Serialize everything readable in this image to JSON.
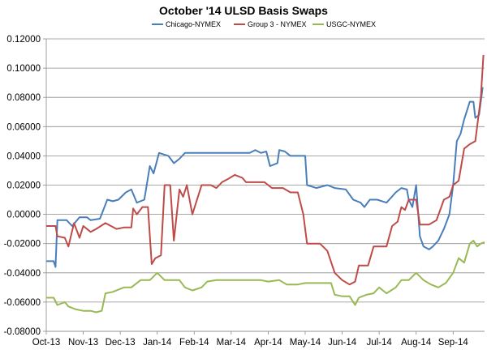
{
  "chart_data": {
    "type": "line",
    "title": "October '14 ULSD Basis Swaps",
    "xlabel": "",
    "ylabel": "",
    "ylim": [
      -0.08,
      0.12
    ],
    "yticks": [
      "0.12000",
      "0.10000",
      "0.08000",
      "0.06000",
      "0.04000",
      "0.02000",
      "0.00000",
      "-0.02000",
      "-0.04000",
      "-0.06000",
      "-0.08000"
    ],
    "ytick_values": [
      0.12,
      0.1,
      0.08,
      0.06,
      0.04,
      0.02,
      0.0,
      -0.02,
      -0.04,
      -0.06,
      -0.08
    ],
    "xticks": [
      "Oct-13",
      "Nov-13",
      "Dec-13",
      "Jan-14",
      "Feb-14",
      "Mar-14",
      "Apr-14",
      "May-14",
      "Jun-14",
      "Jul-14",
      "Aug-14",
      "Sep-14"
    ],
    "xlim": [
      0,
      11.85
    ],
    "grid": true,
    "legend_position": "top",
    "series": [
      {
        "name": "Chicago-NYMEX",
        "color": "#4A7EBB",
        "points": [
          [
            0.0,
            -0.032
          ],
          [
            0.2,
            -0.032
          ],
          [
            0.25,
            -0.036
          ],
          [
            0.3,
            -0.004
          ],
          [
            0.55,
            -0.004
          ],
          [
            0.7,
            -0.008
          ],
          [
            0.9,
            -0.002
          ],
          [
            1.1,
            -0.002
          ],
          [
            1.2,
            -0.004
          ],
          [
            1.45,
            -0.003
          ],
          [
            1.65,
            0.01
          ],
          [
            1.8,
            0.009
          ],
          [
            1.95,
            0.01
          ],
          [
            2.15,
            0.015
          ],
          [
            2.3,
            0.017
          ],
          [
            2.45,
            0.008
          ],
          [
            2.65,
            0.01
          ],
          [
            2.8,
            0.033
          ],
          [
            2.9,
            0.028
          ],
          [
            3.05,
            0.042
          ],
          [
            3.3,
            0.04
          ],
          [
            3.45,
            0.035
          ],
          [
            3.6,
            0.038
          ],
          [
            3.75,
            0.042
          ],
          [
            4.0,
            0.042
          ],
          [
            4.8,
            0.042
          ],
          [
            5.0,
            0.042
          ],
          [
            5.5,
            0.042
          ],
          [
            5.65,
            0.044
          ],
          [
            5.8,
            0.042
          ],
          [
            5.95,
            0.043
          ],
          [
            6.05,
            0.033
          ],
          [
            6.25,
            0.035
          ],
          [
            6.3,
            0.044
          ],
          [
            6.45,
            0.043
          ],
          [
            6.6,
            0.04
          ],
          [
            7.0,
            0.04
          ],
          [
            7.05,
            0.02
          ],
          [
            7.3,
            0.018
          ],
          [
            7.6,
            0.02
          ],
          [
            7.8,
            0.018
          ],
          [
            8.1,
            0.017
          ],
          [
            8.3,
            0.01
          ],
          [
            8.5,
            0.008
          ],
          [
            8.6,
            0.005
          ],
          [
            8.75,
            0.01
          ],
          [
            8.95,
            0.01
          ],
          [
            9.2,
            0.008
          ],
          [
            9.45,
            0.015
          ],
          [
            9.6,
            0.018
          ],
          [
            9.75,
            0.017
          ],
          [
            9.8,
            0.01
          ],
          [
            9.9,
            0.005
          ],
          [
            10.0,
            0.02
          ],
          [
            10.1,
            -0.015
          ],
          [
            10.2,
            -0.022
          ],
          [
            10.35,
            -0.024
          ],
          [
            10.45,
            -0.022
          ],
          [
            10.6,
            -0.018
          ],
          [
            10.75,
            -0.01
          ],
          [
            10.9,
            0.0
          ],
          [
            11.0,
            0.02
          ],
          [
            11.1,
            0.05
          ],
          [
            11.2,
            0.055
          ],
          [
            11.3,
            0.065
          ],
          [
            11.45,
            0.077
          ],
          [
            11.55,
            0.077
          ],
          [
            11.6,
            0.066
          ],
          [
            11.7,
            0.068
          ],
          [
            11.8,
            0.087
          ]
        ]
      },
      {
        "name": "Group 3 - NYMEX",
        "color": "#BE4B48",
        "points": [
          [
            0.0,
            -0.008
          ],
          [
            0.25,
            -0.008
          ],
          [
            0.3,
            -0.015
          ],
          [
            0.5,
            -0.016
          ],
          [
            0.6,
            -0.022
          ],
          [
            0.75,
            -0.006
          ],
          [
            0.9,
            -0.016
          ],
          [
            1.0,
            -0.008
          ],
          [
            1.2,
            -0.012
          ],
          [
            1.35,
            -0.01
          ],
          [
            1.6,
            -0.006
          ],
          [
            1.75,
            -0.008
          ],
          [
            1.9,
            -0.01
          ],
          [
            2.1,
            -0.009
          ],
          [
            2.3,
            -0.009
          ],
          [
            2.35,
            0.004
          ],
          [
            2.45,
            0.0
          ],
          [
            2.6,
            0.005
          ],
          [
            2.75,
            0.005
          ],
          [
            2.85,
            -0.034
          ],
          [
            2.95,
            -0.03
          ],
          [
            3.1,
            -0.028
          ],
          [
            3.2,
            0.02
          ],
          [
            3.35,
            0.02
          ],
          [
            3.45,
            -0.018
          ],
          [
            3.6,
            0.017
          ],
          [
            3.7,
            0.012
          ],
          [
            3.8,
            0.02
          ],
          [
            3.95,
            0.0
          ],
          [
            4.2,
            0.02
          ],
          [
            4.45,
            0.02
          ],
          [
            4.6,
            0.018
          ],
          [
            4.75,
            0.022
          ],
          [
            4.9,
            0.024
          ],
          [
            5.1,
            0.027
          ],
          [
            5.3,
            0.025
          ],
          [
            5.4,
            0.022
          ],
          [
            5.6,
            0.022
          ],
          [
            5.9,
            0.022
          ],
          [
            6.1,
            0.018
          ],
          [
            6.4,
            0.018
          ],
          [
            6.6,
            0.015
          ],
          [
            6.8,
            0.015
          ],
          [
            6.95,
            0.0
          ],
          [
            7.05,
            -0.02
          ],
          [
            7.2,
            -0.02
          ],
          [
            7.4,
            -0.02
          ],
          [
            7.6,
            -0.025
          ],
          [
            7.8,
            -0.04
          ],
          [
            8.0,
            -0.045
          ],
          [
            8.2,
            -0.048
          ],
          [
            8.35,
            -0.046
          ],
          [
            8.45,
            -0.035
          ],
          [
            8.7,
            -0.035
          ],
          [
            8.85,
            -0.022
          ],
          [
            9.2,
            -0.022
          ],
          [
            9.35,
            -0.008
          ],
          [
            9.5,
            -0.005
          ],
          [
            9.6,
            0.005
          ],
          [
            9.7,
            0.003
          ],
          [
            9.8,
            0.01
          ],
          [
            9.9,
            0.01
          ],
          [
            10.0,
            0.01
          ],
          [
            10.1,
            -0.007
          ],
          [
            10.35,
            -0.007
          ],
          [
            10.55,
            -0.004
          ],
          [
            10.75,
            0.01
          ],
          [
            10.9,
            0.012
          ],
          [
            11.0,
            0.02
          ],
          [
            11.15,
            0.023
          ],
          [
            11.3,
            0.045
          ],
          [
            11.45,
            0.048
          ],
          [
            11.6,
            0.05
          ],
          [
            11.75,
            0.08
          ],
          [
            11.82,
            0.109
          ]
        ]
      },
      {
        "name": "USGC-NYMEX",
        "color": "#98B954",
        "points": [
          [
            0.0,
            -0.057
          ],
          [
            0.2,
            -0.057
          ],
          [
            0.3,
            -0.062
          ],
          [
            0.5,
            -0.06
          ],
          [
            0.6,
            -0.063
          ],
          [
            0.8,
            -0.065
          ],
          [
            1.0,
            -0.066
          ],
          [
            1.2,
            -0.066
          ],
          [
            1.35,
            -0.067
          ],
          [
            1.5,
            -0.066
          ],
          [
            1.6,
            -0.054
          ],
          [
            1.8,
            -0.053
          ],
          [
            2.1,
            -0.05
          ],
          [
            2.3,
            -0.05
          ],
          [
            2.55,
            -0.045
          ],
          [
            2.8,
            -0.045
          ],
          [
            3.0,
            -0.04
          ],
          [
            3.2,
            -0.045
          ],
          [
            3.6,
            -0.045
          ],
          [
            3.75,
            -0.05
          ],
          [
            3.95,
            -0.052
          ],
          [
            4.2,
            -0.05
          ],
          [
            4.35,
            -0.046
          ],
          [
            4.6,
            -0.045
          ],
          [
            5.0,
            -0.045
          ],
          [
            5.5,
            -0.045
          ],
          [
            5.8,
            -0.045
          ],
          [
            6.0,
            -0.046
          ],
          [
            6.3,
            -0.045
          ],
          [
            6.5,
            -0.048
          ],
          [
            6.8,
            -0.048
          ],
          [
            7.0,
            -0.047
          ],
          [
            7.3,
            -0.047
          ],
          [
            7.5,
            -0.047
          ],
          [
            7.7,
            -0.047
          ],
          [
            7.8,
            -0.055
          ],
          [
            8.0,
            -0.056
          ],
          [
            8.2,
            -0.056
          ],
          [
            8.35,
            -0.062
          ],
          [
            8.45,
            -0.057
          ],
          [
            8.65,
            -0.055
          ],
          [
            8.85,
            -0.054
          ],
          [
            9.0,
            -0.05
          ],
          [
            9.2,
            -0.054
          ],
          [
            9.45,
            -0.05
          ],
          [
            9.6,
            -0.045
          ],
          [
            9.8,
            -0.045
          ],
          [
            10.0,
            -0.04
          ],
          [
            10.2,
            -0.045
          ],
          [
            10.4,
            -0.048
          ],
          [
            10.6,
            -0.05
          ],
          [
            10.8,
            -0.047
          ],
          [
            11.0,
            -0.04
          ],
          [
            11.15,
            -0.03
          ],
          [
            11.3,
            -0.033
          ],
          [
            11.45,
            -0.02
          ],
          [
            11.55,
            -0.018
          ],
          [
            11.65,
            -0.022
          ],
          [
            11.75,
            -0.02
          ],
          [
            11.85,
            -0.019
          ]
        ]
      }
    ]
  }
}
